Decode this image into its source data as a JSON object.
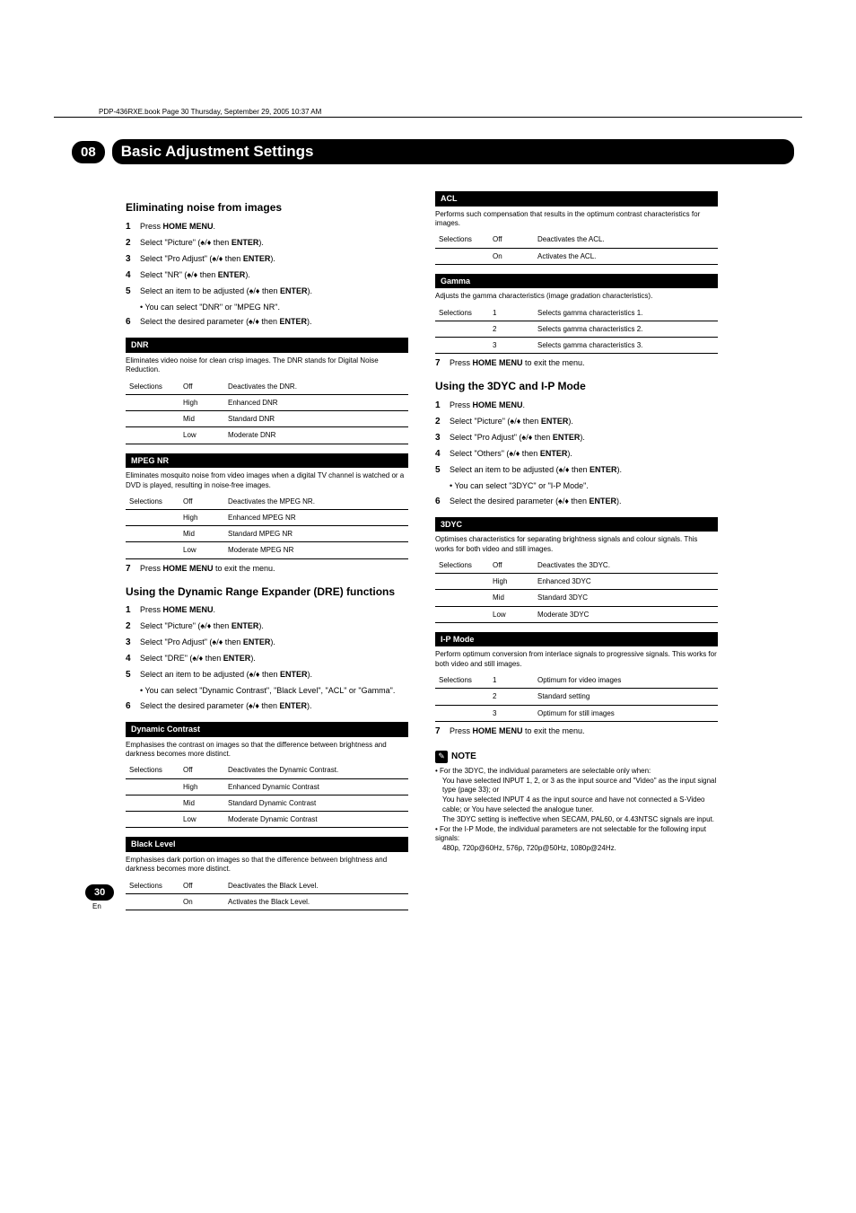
{
  "header_line": "PDP-436RXE.book  Page 30  Thursday, September 29, 2005  10:37 AM",
  "chapter": {
    "num": "08",
    "title": "Basic Adjustment Settings"
  },
  "page_number": "30",
  "page_lang": "En",
  "left": {
    "s1": {
      "title": "Eliminating noise from images",
      "steps": [
        {
          "n": "1",
          "t": "Press ",
          "b": "HOME MENU",
          "after": "."
        },
        {
          "n": "2",
          "t": "Select \"Picture\" (",
          "mid": "/",
          "b": " then ",
          "bb": "ENTER",
          "after": ")."
        },
        {
          "n": "3",
          "t": "Select \"Pro Adjust\" (",
          "mid": "/",
          "b": " then ",
          "bb": "ENTER",
          "after": ")."
        },
        {
          "n": "4",
          "t": "Select \"NR\" (",
          "mid": "/",
          "b": " then ",
          "bb": "ENTER",
          "after": ")."
        },
        {
          "n": "5",
          "t": "Select an item to be adjusted (",
          "mid": "/",
          "b": " then ",
          "bb": "ENTER",
          "after": ").",
          "bullet": "• You can select \"DNR\" or \"MPEG NR\"."
        },
        {
          "n": "6",
          "t": "Select the desired parameter (",
          "mid": "/",
          "b": " then ",
          "bb": "ENTER",
          "after": ")."
        }
      ],
      "dnr": {
        "h": "DNR",
        "desc": "Eliminates video noise for clean crisp images. The DNR stands for Digital Noise Reduction.",
        "rows": [
          [
            "Selections",
            "Off",
            "Deactivates the DNR."
          ],
          [
            "",
            "High",
            "Enhanced DNR"
          ],
          [
            "",
            "Mid",
            "Standard DNR"
          ],
          [
            "",
            "Low",
            "Moderate DNR"
          ]
        ]
      },
      "mpeg": {
        "h": "MPEG NR",
        "desc": "Eliminates mosquito noise from video images when a digital TV channel is watched or a DVD is played, resulting in noise-free images.",
        "rows": [
          [
            "Selections",
            "Off",
            "Deactivates the MPEG NR."
          ],
          [
            "",
            "High",
            "Enhanced MPEG NR"
          ],
          [
            "",
            "Mid",
            "Standard MPEG NR"
          ],
          [
            "",
            "Low",
            "Moderate MPEG NR"
          ]
        ]
      },
      "step7": {
        "n": "7",
        "t": "Press ",
        "b": "HOME MENU",
        "after": " to exit the menu."
      }
    },
    "s2": {
      "title": "Using the Dynamic Range Expander (DRE) functions",
      "steps": [
        {
          "n": "1",
          "t": "Press ",
          "b": "HOME MENU",
          "after": "."
        },
        {
          "n": "2",
          "t": "Select \"Picture\" (",
          "mid": "/",
          "b": " then ",
          "bb": "ENTER",
          "after": ")."
        },
        {
          "n": "3",
          "t": "Select \"Pro Adjust\" (",
          "mid": "/",
          "b": " then ",
          "bb": "ENTER",
          "after": ")."
        },
        {
          "n": "4",
          "t": "Select \"DRE\" (",
          "mid": "/",
          "b": " then ",
          "bb": "ENTER",
          "after": ")."
        },
        {
          "n": "5",
          "t": "Select an item to be adjusted (",
          "mid": "/",
          "b": " then ",
          "bb": "ENTER",
          "after": ").",
          "bullet": "• You can select \"Dynamic Contrast\", \"Black Level\", \"ACL\" or \"Gamma\"."
        },
        {
          "n": "6",
          "t": "Select the desired parameter (",
          "mid": "/",
          "b": " then ",
          "bb": "ENTER",
          "after": ")."
        }
      ],
      "dc": {
        "h": "Dynamic Contrast",
        "desc": "Emphasises the contrast on images so that the difference between brightness and darkness becomes more distinct.",
        "rows": [
          [
            "Selections",
            "Off",
            "Deactivates the Dynamic Contrast."
          ],
          [
            "",
            "High",
            "Enhanced Dynamic Contrast"
          ],
          [
            "",
            "Mid",
            "Standard Dynamic Contrast"
          ],
          [
            "",
            "Low",
            "Moderate Dynamic Contrast"
          ]
        ]
      },
      "bl": {
        "h": "Black Level",
        "desc": "Emphasises dark portion on images so that the difference between brightness and darkness becomes more distinct.",
        "rows": [
          [
            "Selections",
            "Off",
            "Deactivates the Black Level."
          ],
          [
            "",
            "On",
            "Activates the Black Level."
          ]
        ]
      }
    }
  },
  "right": {
    "acl": {
      "h": "ACL",
      "desc": "Performs such compensation that results in the optimum contrast characteristics for images.",
      "rows": [
        [
          "Selections",
          "Off",
          "Deactivates the ACL."
        ],
        [
          "",
          "On",
          "Activates the ACL."
        ]
      ]
    },
    "gamma": {
      "h": "Gamma",
      "desc": "Adjusts the gamma characteristics (image gradation characteristics).",
      "rows": [
        [
          "Selections",
          "1",
          "Selects gamma characteristics 1."
        ],
        [
          "",
          "2",
          "Selects gamma characteristics 2."
        ],
        [
          "",
          "3",
          "Selects gamma characteristics 3."
        ]
      ]
    },
    "step7": {
      "n": "7",
      "t": "Press ",
      "b": "HOME MENU",
      "after": " to exit the menu."
    },
    "s3": {
      "title": "Using the 3DYC and I-P Mode",
      "steps": [
        {
          "n": "1",
          "t": "Press ",
          "b": "HOME MENU",
          "after": "."
        },
        {
          "n": "2",
          "t": "Select \"Picture\" (",
          "mid": "/",
          "b": " then ",
          "bb": "ENTER",
          "after": ")."
        },
        {
          "n": "3",
          "t": "Select \"Pro Adjust\" (",
          "mid": "/",
          "b": " then ",
          "bb": "ENTER",
          "after": ")."
        },
        {
          "n": "4",
          "t": "Select \"Others\" (",
          "mid": "/",
          "b": " then ",
          "bb": "ENTER",
          "after": ")."
        },
        {
          "n": "5",
          "t": "Select an item to be adjusted (",
          "mid": "/",
          "b": " then ",
          "bb": "ENTER",
          "after": ").",
          "bullet": "• You can select \"3DYC\" or \"I-P Mode\"."
        },
        {
          "n": "6",
          "t": "Select the desired parameter (",
          "mid": "/",
          "b": " then ",
          "bb": "ENTER",
          "after": ")."
        }
      ],
      "dyc": {
        "h": "3DYC",
        "desc": "Optimises characteristics for separating brightness signals and colour signals. This works for both video and still images.",
        "rows": [
          [
            "Selections",
            "Off",
            "Deactivates the 3DYC."
          ],
          [
            "",
            "High",
            "Enhanced 3DYC"
          ],
          [
            "",
            "Mid",
            "Standard 3DYC"
          ],
          [
            "",
            "Low",
            "Moderate 3DYC"
          ]
        ]
      },
      "ip": {
        "h": "I-P Mode",
        "desc": "Perform optimum conversion from interlace signals to progressive signals. This works for both video and still images.",
        "rows": [
          [
            "Selections",
            "1",
            "Optimum for video images"
          ],
          [
            "",
            "2",
            "Standard setting"
          ],
          [
            "",
            "3",
            "Optimum for still images"
          ]
        ]
      },
      "step7b": {
        "n": "7",
        "t": "Press ",
        "b": "HOME MENU",
        "after": " to exit the menu."
      }
    },
    "note": {
      "label": "NOTE",
      "text1": "• For the 3DYC, the individual parameters are selectable only when:",
      "text2": "You have selected INPUT 1, 2, or 3 as the input source and \"Video\" as the input signal type (page 33); or",
      "text3": "You have selected INPUT 4 as the input source and have not connected a S-Video cable; or You have selected the analogue tuner.",
      "text4": "The 3DYC setting is ineffective when SECAM, PAL60, or 4.43NTSC signals are input.",
      "text5": "• For the I-P Mode, the individual parameters are not selectable for the following input signals:",
      "text6": "480p, 720p@60Hz, 576p, 720p@50Hz, 1080p@24Hz."
    }
  }
}
